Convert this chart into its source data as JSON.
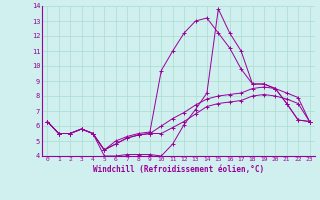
{
  "xlabel": "Windchill (Refroidissement éolien,°C)",
  "background_color": "#cff0ee",
  "grid_color": "#aaddcc",
  "line_color": "#990099",
  "xlim": [
    -0.5,
    23.5
  ],
  "ylim": [
    4,
    14
  ],
  "xticks": [
    0,
    1,
    2,
    3,
    4,
    5,
    6,
    7,
    8,
    9,
    10,
    11,
    12,
    13,
    14,
    15,
    16,
    17,
    18,
    19,
    20,
    21,
    22,
    23
  ],
  "yticks": [
    4,
    5,
    6,
    7,
    8,
    9,
    10,
    11,
    12,
    13,
    14
  ],
  "series": [
    [
      6.3,
      5.5,
      5.5,
      5.8,
      5.5,
      4.0,
      4.0,
      4.1,
      4.1,
      4.1,
      4.0,
      4.8,
      6.1,
      7.1,
      8.2,
      13.8,
      12.2,
      11.0,
      8.8,
      8.8,
      8.5,
      7.5,
      6.4,
      6.3
    ],
    [
      6.3,
      5.5,
      5.5,
      5.8,
      5.5,
      4.4,
      4.8,
      5.2,
      5.4,
      5.5,
      5.5,
      5.9,
      6.3,
      6.8,
      7.3,
      7.5,
      7.6,
      7.7,
      8.0,
      8.1,
      8.0,
      7.8,
      7.5,
      6.3
    ],
    [
      6.3,
      5.5,
      5.5,
      5.8,
      5.5,
      4.4,
      4.8,
      5.2,
      5.4,
      5.5,
      6.0,
      6.5,
      6.9,
      7.4,
      7.8,
      8.0,
      8.1,
      8.2,
      8.5,
      8.6,
      8.5,
      8.2,
      7.9,
      6.3
    ],
    [
      6.3,
      5.5,
      5.5,
      5.8,
      5.5,
      4.4,
      5.0,
      5.3,
      5.5,
      5.6,
      9.7,
      11.0,
      12.2,
      13.0,
      13.2,
      12.2,
      11.2,
      9.8,
      8.8,
      8.8,
      8.5,
      7.5,
      6.4,
      6.3
    ]
  ]
}
